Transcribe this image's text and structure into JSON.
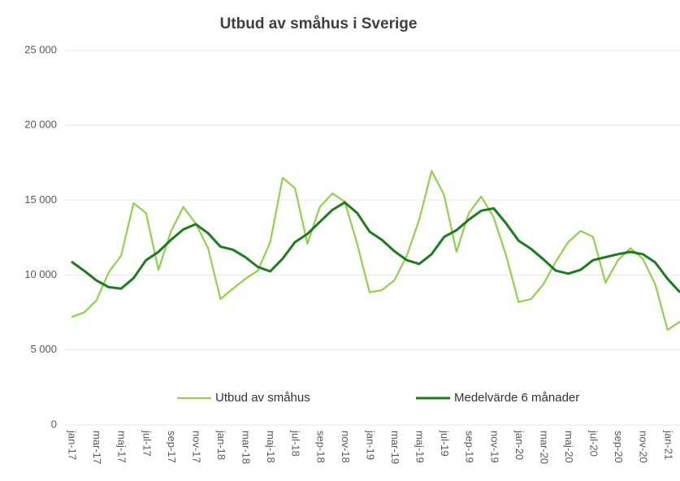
{
  "chart_data": {
    "type": "line",
    "title": "Utbud av småhus i Sverige",
    "categories": [
      "jan-17",
      null,
      "mar-17",
      null,
      "maj-17",
      null,
      "jul-17",
      null,
      "sep-17",
      null,
      "nov-17",
      null,
      "jan-18",
      null,
      "mar-18",
      null,
      "maj-18",
      null,
      "jul-18",
      null,
      "sep-18",
      null,
      "nov-18",
      null,
      "jan-19",
      null,
      "mar-19",
      null,
      "maj-19",
      null,
      "jul-19",
      null,
      "sep-19",
      null,
      "nov-19",
      null,
      "jan-20",
      null,
      "mar-20",
      null,
      "maj-20",
      null,
      "jul-20",
      null,
      "sep-20",
      null,
      "nov-20",
      null,
      "jan-21",
      null
    ],
    "series": [
      {
        "name": "Utbud av småhus",
        "color": "#92d050",
        "values": [
          7200,
          7500,
          8300,
          10200,
          11300,
          14800,
          14150,
          10350,
          12900,
          14550,
          13450,
          11800,
          8400,
          9100,
          9750,
          10300,
          12200,
          16500,
          15800,
          12100,
          14550,
          15450,
          14900,
          12100,
          8850,
          9000,
          9650,
          11300,
          13700,
          16950,
          15350,
          11550,
          14150,
          15250,
          13850,
          11300,
          8200,
          8400,
          9400,
          10900,
          12200,
          12950,
          12550,
          9500,
          11000,
          11800,
          11100,
          9400,
          6350,
          6900
        ]
      },
      {
        "name": "Medelvärde 6 månader",
        "color": "#1e7b1e",
        "values": [
          10900,
          10300,
          9650,
          9200,
          9100,
          9800,
          11000,
          11550,
          12350,
          13050,
          13400,
          12800,
          11900,
          11700,
          11200,
          10550,
          10250,
          11100,
          12200,
          12750,
          13550,
          14350,
          14850,
          14150,
          12900,
          12350,
          11600,
          11000,
          10750,
          11400,
          12550,
          13000,
          13700,
          14300,
          14450,
          13450,
          12300,
          11750,
          11050,
          10300,
          10100,
          10350,
          11000,
          11200,
          11400,
          11550,
          11400,
          10850,
          9750,
          8850
        ]
      }
    ],
    "ylim": [
      0,
      25000
    ],
    "yticks": [
      0,
      {
        "value": 5000,
        "label": "5 000"
      },
      {
        "value": 10000,
        "label": "10 000"
      },
      {
        "value": 15000,
        "label": "15 000"
      },
      {
        "value": 20000,
        "label": "20 000"
      },
      {
        "value": 25000,
        "label": "25 000"
      }
    ],
    "grid": true,
    "legend": "bottom"
  }
}
